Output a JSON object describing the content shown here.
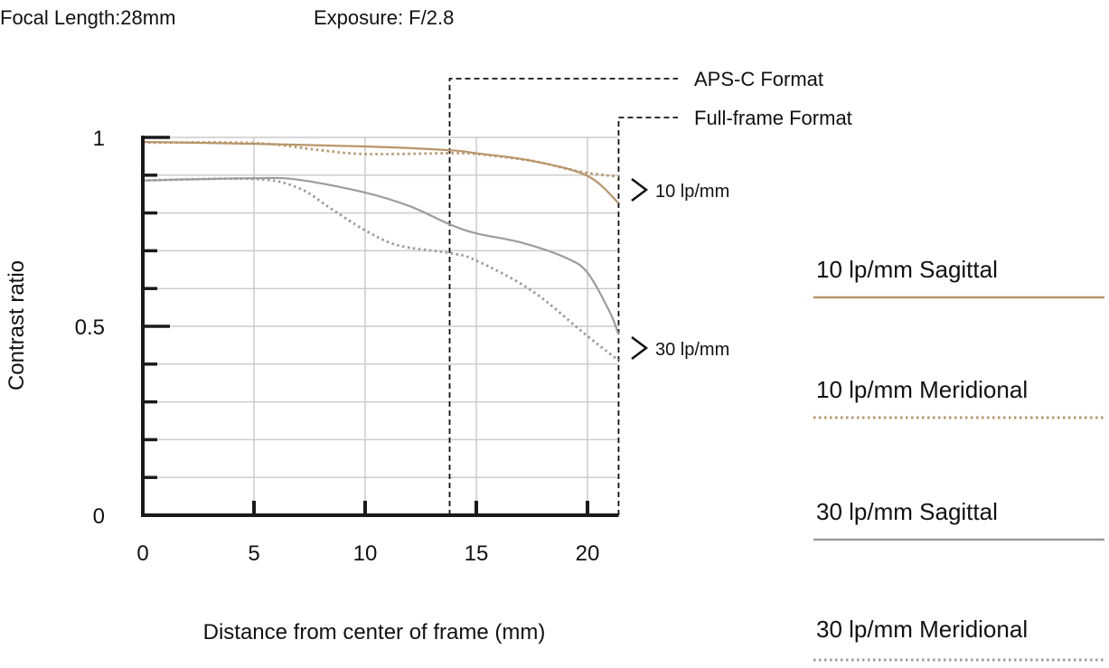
{
  "header": {
    "focal_length": "Focal Length:28mm",
    "exposure": "Exposure: F/2.8"
  },
  "annotations": {
    "apsc": {
      "label": "APS-C Format",
      "x": 13.8
    },
    "fullframe": {
      "label": "Full-frame Format",
      "x": 21.4
    },
    "group10": "10 lp/mm",
    "group30": "30 lp/mm"
  },
  "colors": {
    "gold": "#b8956a",
    "gray": "#9c9c9c",
    "grid": "#cccccc",
    "axis": "#1a1a1a"
  },
  "chart_data": {
    "type": "line",
    "xlabel": "Distance from center of frame (mm)",
    "ylabel": "Contrast ratio",
    "xlim": [
      0,
      21.4
    ],
    "ylim": [
      0,
      1
    ],
    "x_ticks": [
      0,
      5,
      10,
      15,
      20
    ],
    "x_tick_labels": [
      "0",
      "5",
      "10",
      "15",
      "20"
    ],
    "y_ticks": [
      0,
      0.1,
      0.2,
      0.3,
      0.4,
      0.5,
      0.6,
      0.7,
      0.8,
      0.9,
      1
    ],
    "y_tick_labels": {
      "0": "0",
      "0.5": "0.5",
      "1": "1"
    },
    "grid": true,
    "legend_placement": "right",
    "series": [
      {
        "name": "10 lp/mm Sagittal",
        "color": "#b8956a",
        "style": "solid",
        "x": [
          0,
          5,
          10,
          13.8,
          15,
          17.5,
          20,
          21.4
        ],
        "y": [
          0.988,
          0.983,
          0.976,
          0.966,
          0.958,
          0.938,
          0.898,
          0.826
        ]
      },
      {
        "name": "10 lp/mm Meridional",
        "color": "#b8956a",
        "style": "dotted",
        "x": [
          0,
          5,
          8,
          10,
          13.8,
          15,
          17.5,
          19,
          20,
          21.4
        ],
        "y": [
          0.986,
          0.985,
          0.966,
          0.956,
          0.958,
          0.956,
          0.938,
          0.918,
          0.906,
          0.896
        ]
      },
      {
        "name": "30 lp/mm Sagittal",
        "color": "#9c9c9c",
        "style": "solid",
        "x": [
          0,
          5,
          7,
          10,
          12,
          13.8,
          15,
          17,
          19,
          20,
          21,
          21.4
        ],
        "y": [
          0.886,
          0.892,
          0.888,
          0.854,
          0.818,
          0.77,
          0.746,
          0.722,
          0.682,
          0.642,
          0.538,
          0.478
        ]
      },
      {
        "name": "30 lp/mm Meridional",
        "color": "#9c9c9c",
        "style": "dotted",
        "x": [
          0,
          5,
          7,
          8.5,
          10,
          11.5,
          13.8,
          15,
          17.5,
          20,
          21.4
        ],
        "y": [
          0.886,
          0.89,
          0.866,
          0.81,
          0.754,
          0.714,
          0.694,
          0.674,
          0.594,
          0.474,
          0.41
        ]
      }
    ]
  }
}
